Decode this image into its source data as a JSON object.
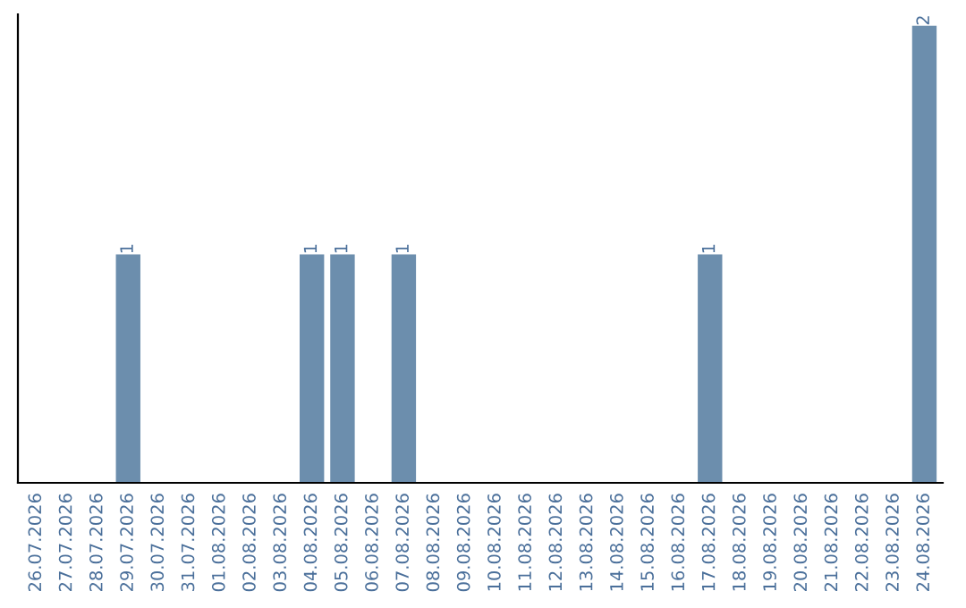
{
  "chart_data": {
    "type": "bar",
    "categories": [
      "26.07.2026",
      "27.07.2026",
      "28.07.2026",
      "29.07.2026",
      "30.07.2026",
      "31.07.2026",
      "01.08.2026",
      "02.08.2026",
      "03.08.2026",
      "04.08.2026",
      "05.08.2026",
      "06.08.2026",
      "07.08.2026",
      "08.08.2026",
      "09.08.2026",
      "10.08.2026",
      "11.08.2026",
      "12.08.2026",
      "13.08.2026",
      "14.08.2026",
      "15.08.2026",
      "16.08.2026",
      "17.08.2026",
      "18.08.2026",
      "19.08.2026",
      "20.08.2026",
      "21.08.2026",
      "22.08.2026",
      "23.08.2026",
      "24.08.2026"
    ],
    "values": [
      0,
      0,
      0,
      1,
      0,
      0,
      0,
      0,
      0,
      1,
      1,
      0,
      1,
      0,
      0,
      0,
      0,
      0,
      0,
      0,
      0,
      0,
      1,
      0,
      0,
      0,
      0,
      0,
      0,
      2
    ],
    "value_labels": [
      null,
      null,
      null,
      "1",
      null,
      null,
      null,
      null,
      null,
      "1",
      "1",
      null,
      "1",
      null,
      null,
      null,
      null,
      null,
      null,
      null,
      null,
      null,
      "1",
      null,
      null,
      null,
      null,
      null,
      null,
      "2"
    ],
    "color": "#6c8ead",
    "ylim": [
      0,
      2.05
    ],
    "tick_labels": "x",
    "grid": false,
    "legend": false
  }
}
